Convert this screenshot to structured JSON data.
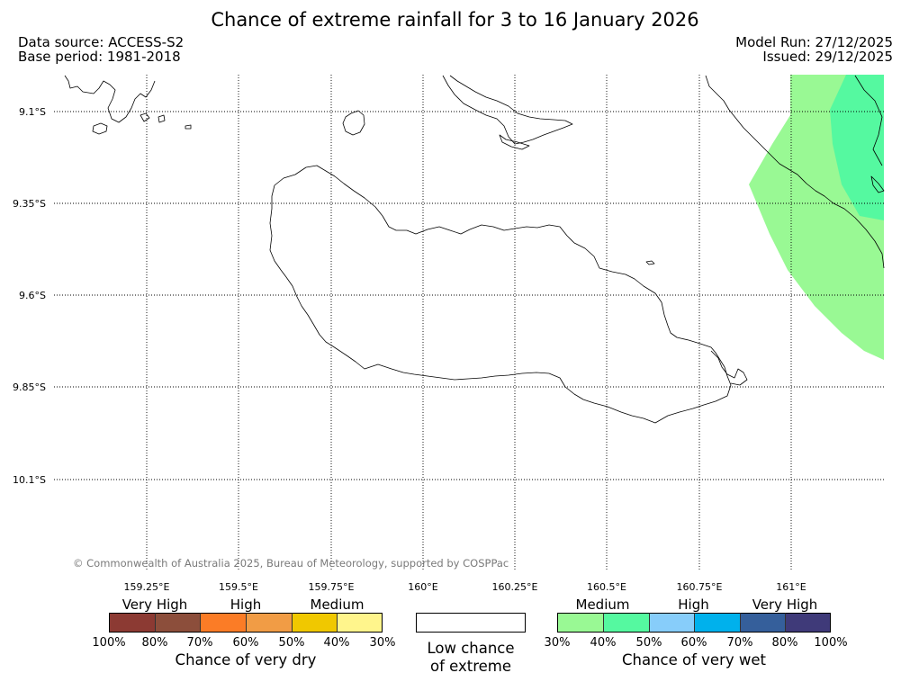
{
  "header": {
    "title": "Chance of extreme rainfall for 3 to 16 January 2026",
    "data_source": "Data source: ACCESS-S2",
    "base_period": "Base period: 1981-2018",
    "model_run": "Model Run: 27/12/2025",
    "issued": "Issued: 29/12/2025"
  },
  "map": {
    "latitude_labels": [
      "9.1°S",
      "9.35°S",
      "9.6°S",
      "9.85°S",
      "10.1°S"
    ],
    "longitude_labels": [
      "159.25°E",
      "159.5°E",
      "159.75°E",
      "160°E",
      "160.25°E",
      "160.5°E",
      "160.75°E",
      "161°E"
    ],
    "copyright": "© Commonwealth of Australia 2025, Bureau of Meteorology, supported by COSPPac",
    "colors": {
      "wet_medium_30_40": "#99f994",
      "wet_medium_40_50": "#55f9a0",
      "land_outline": "#000000"
    }
  },
  "legend": {
    "dry": {
      "categories": [
        "Very High",
        "High",
        "Medium"
      ],
      "colors": [
        "#8c3a33",
        "#8c4e3b",
        "#fb7c26",
        "#f19c45",
        "#f0c800",
        "#fff58c"
      ],
      "ticks": [
        "100%",
        "80%",
        "70%",
        "60%",
        "50%",
        "40%",
        "30%"
      ],
      "label": "Chance of very dry"
    },
    "low": {
      "line1": "Low chance",
      "line2": "of extreme"
    },
    "wet": {
      "categories": [
        "Medium",
        "High",
        "Very High"
      ],
      "colors": [
        "#99f994",
        "#55f9a0",
        "#87cdfa",
        "#00b1ec",
        "#355f9b",
        "#3f3a79"
      ],
      "ticks": [
        "30%",
        "40%",
        "50%",
        "60%",
        "70%",
        "80%",
        "100%"
      ],
      "label": "Chance of very wet"
    }
  }
}
